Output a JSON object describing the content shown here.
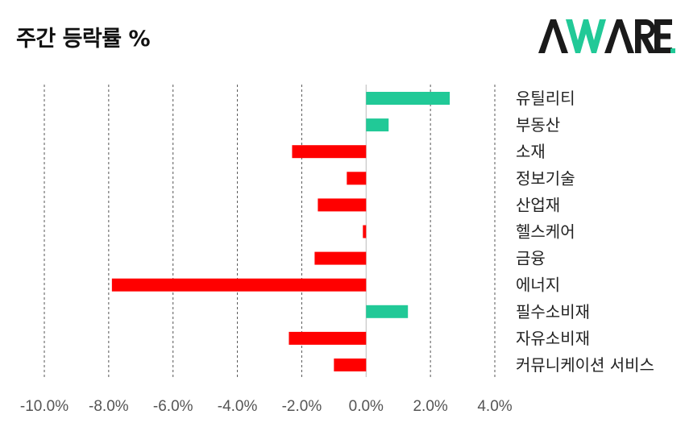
{
  "header": {
    "title": "주간 등락률 %",
    "logo_text": "AWARE."
  },
  "colors": {
    "positive": "#21c997",
    "negative": "#ff0000",
    "grid": "#555555",
    "logo_dark": "#1a1a1a",
    "logo_accent": "#21c997"
  },
  "chart_data": {
    "type": "bar",
    "orientation": "horizontal",
    "title": "주간 등락률 %",
    "categories": [
      "유틸리티",
      "부동산",
      "소재",
      "정보기술",
      "산업재",
      "헬스케어",
      "금융",
      "에너지",
      "필수소비재",
      "자유소비재",
      "커뮤니케이션 서비스"
    ],
    "values": [
      2.6,
      0.7,
      -2.3,
      -0.6,
      -1.5,
      -0.1,
      -1.6,
      -7.9,
      1.3,
      -2.4,
      -1.0
    ],
    "xlim": [
      -10,
      4
    ],
    "xticks": [
      -10,
      -8,
      -6,
      -4,
      -2,
      0,
      2,
      4
    ],
    "xtick_labels": [
      "-10.0%",
      "-8.0%",
      "-6.0%",
      "-4.0%",
      "-2.0%",
      "0.0%",
      "2.0%",
      "4.0%"
    ],
    "grid": "vertical dashed",
    "xlabel": "",
    "ylabel": ""
  }
}
